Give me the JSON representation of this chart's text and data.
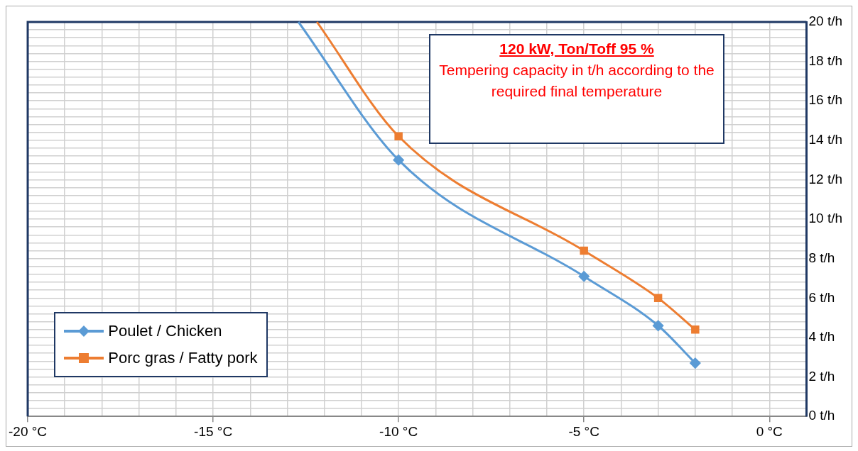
{
  "chart_data": {
    "type": "line",
    "xlim": [
      -20,
      1
    ],
    "ylim": [
      0,
      20
    ],
    "xticks": [
      {
        "value": -20,
        "label": "-20 °C"
      },
      {
        "value": -19,
        "label": null
      },
      {
        "value": -18,
        "label": null
      },
      {
        "value": -17,
        "label": null
      },
      {
        "value": -16,
        "label": null
      },
      {
        "value": -15,
        "label": "-15 °C"
      },
      {
        "value": -14,
        "label": null
      },
      {
        "value": -13,
        "label": null
      },
      {
        "value": -12,
        "label": null
      },
      {
        "value": -11,
        "label": null
      },
      {
        "value": -10,
        "label": "-10 °C"
      },
      {
        "value": -9,
        "label": null
      },
      {
        "value": -8,
        "label": null
      },
      {
        "value": -7,
        "label": null
      },
      {
        "value": -6,
        "label": null
      },
      {
        "value": -5,
        "label": "-5 °C"
      },
      {
        "value": -4,
        "label": null
      },
      {
        "value": -3,
        "label": null
      },
      {
        "value": -2,
        "label": null
      },
      {
        "value": -1,
        "label": null
      },
      {
        "value": 0,
        "label": "0 °C"
      },
      {
        "value": 1,
        "label": null
      }
    ],
    "yticks": [
      {
        "value": 0,
        "label": "0 t/h"
      },
      {
        "value": 0.4,
        "label": null
      },
      {
        "value": 0.8,
        "label": null
      },
      {
        "value": 1.2,
        "label": null
      },
      {
        "value": 1.6,
        "label": null
      },
      {
        "value": 2,
        "label": "2 t/h"
      },
      {
        "value": 2.4,
        "label": null
      },
      {
        "value": 2.8,
        "label": null
      },
      {
        "value": 3.2,
        "label": null
      },
      {
        "value": 3.6,
        "label": null
      },
      {
        "value": 4,
        "label": "4 t/h"
      },
      {
        "value": 4.4,
        "label": null
      },
      {
        "value": 4.8,
        "label": null
      },
      {
        "value": 5.2,
        "label": null
      },
      {
        "value": 5.6,
        "label": null
      },
      {
        "value": 6,
        "label": "6 t/h"
      },
      {
        "value": 6.4,
        "label": null
      },
      {
        "value": 6.8,
        "label": null
      },
      {
        "value": 7.2,
        "label": null
      },
      {
        "value": 7.6,
        "label": null
      },
      {
        "value": 8,
        "label": "8 t/h"
      },
      {
        "value": 8.4,
        "label": null
      },
      {
        "value": 8.8,
        "label": null
      },
      {
        "value": 9.2,
        "label": null
      },
      {
        "value": 9.6,
        "label": null
      },
      {
        "value": 10,
        "label": "10 t/h"
      },
      {
        "value": 10.4,
        "label": null
      },
      {
        "value": 10.8,
        "label": null
      },
      {
        "value": 11.2,
        "label": null
      },
      {
        "value": 11.6,
        "label": null
      },
      {
        "value": 12,
        "label": "12 t/h"
      },
      {
        "value": 12.4,
        "label": null
      },
      {
        "value": 12.8,
        "label": null
      },
      {
        "value": 13.2,
        "label": null
      },
      {
        "value": 13.6,
        "label": null
      },
      {
        "value": 14,
        "label": "14 t/h"
      },
      {
        "value": 14.4,
        "label": null
      },
      {
        "value": 14.8,
        "label": null
      },
      {
        "value": 15.2,
        "label": null
      },
      {
        "value": 15.6,
        "label": null
      },
      {
        "value": 16,
        "label": "16 t/h"
      },
      {
        "value": 16.4,
        "label": null
      },
      {
        "value": 16.8,
        "label": null
      },
      {
        "value": 17.2,
        "label": null
      },
      {
        "value": 17.6,
        "label": null
      },
      {
        "value": 18,
        "label": "18 t/h"
      },
      {
        "value": 18.4,
        "label": null
      },
      {
        "value": 18.8,
        "label": null
      },
      {
        "value": 19.2,
        "label": null
      },
      {
        "value": 19.6,
        "label": null
      },
      {
        "value": 20,
        "label": "20 t/h"
      }
    ],
    "grid": true,
    "legend": "bottom left",
    "line_style": "solid",
    "series": [
      {
        "name": "Poulet / Chicken",
        "color": "#5b9bd5",
        "marker": "diamond",
        "x": [
          -12.7,
          -10,
          -5,
          -3,
          -2
        ],
        "values": [
          20,
          13,
          7.1,
          4.6,
          2.7
        ]
      },
      {
        "name": "Porc gras / Fatty pork",
        "color": "#ed7d31",
        "marker": "square",
        "x": [
          -12.2,
          -10,
          -5,
          -3,
          -2
        ],
        "values": [
          20,
          14.2,
          8.4,
          6,
          4.4
        ]
      }
    ],
    "annotations": [
      "120 kW,  Ton/Toff 95 %",
      "Tempering capacity in t/h according to the required final temperature"
    ]
  }
}
